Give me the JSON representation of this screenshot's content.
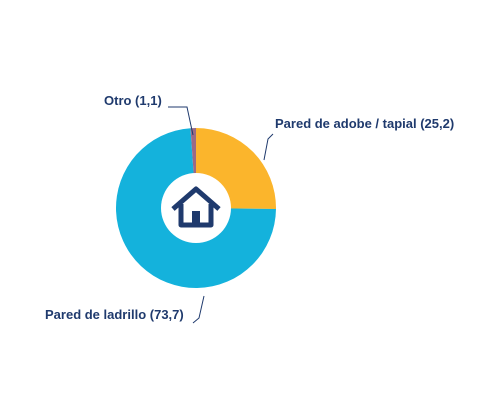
{
  "chart_data": {
    "type": "pie",
    "style": "donut",
    "title": "",
    "slices": [
      {
        "label": "Pared de adobe / tapial",
        "value": 25.2,
        "color": "#fbb52c"
      },
      {
        "label": "Pared de ladrillo",
        "value": 73.7,
        "color": "#14b2dc"
      },
      {
        "label": "Otro",
        "value": 1.1,
        "color": "#9a6a86"
      }
    ],
    "center_icon": "house-icon",
    "center_icon_color": "#1f3a6d",
    "label_color": "#1f3a6d",
    "display_labels": [
      "Otro (1,1)",
      "Pared de adobe / tapial (25,2)",
      "Pared de ladrillo (73,7)"
    ]
  }
}
